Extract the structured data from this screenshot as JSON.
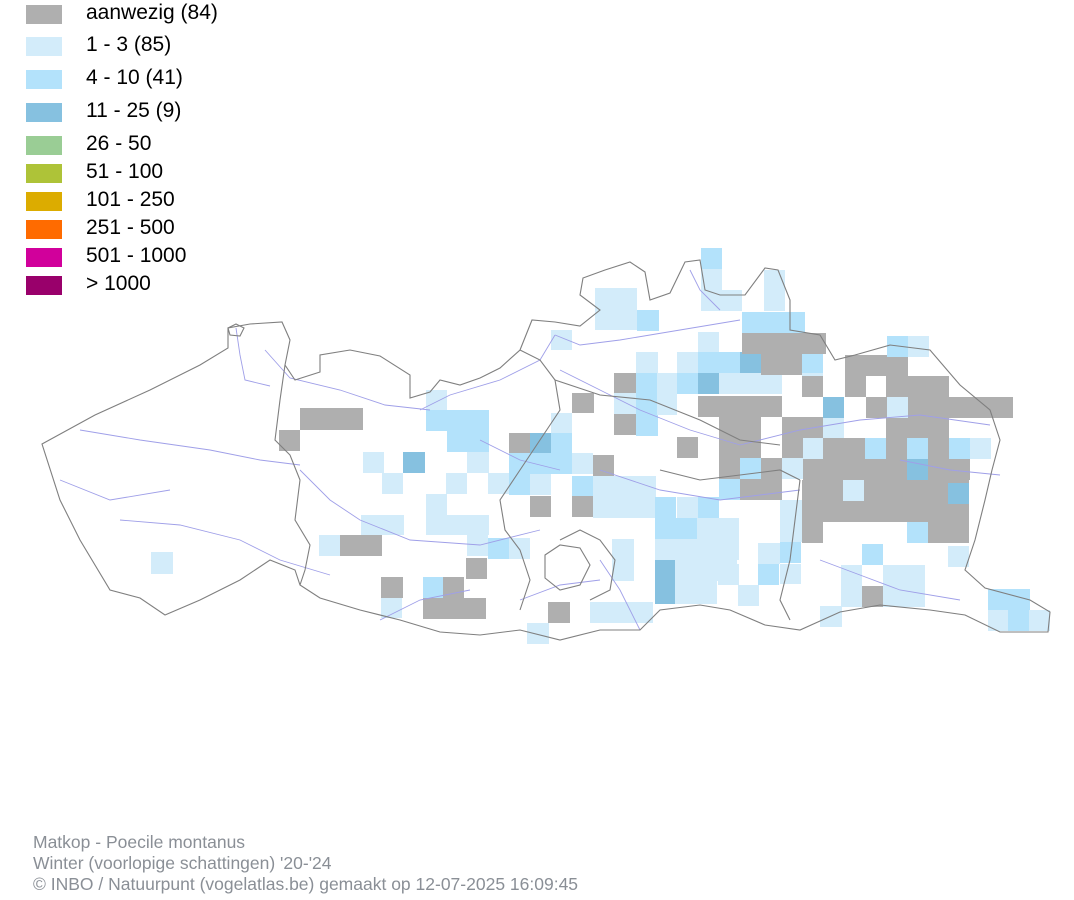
{
  "legend": {
    "items": [
      {
        "label": "aanwezig (84)",
        "color": "#afafaf"
      },
      {
        "label": "1 - 3 (85)",
        "color": "#d3ecfa"
      },
      {
        "label": "4 - 10 (41)",
        "color": "#b3e2fb"
      },
      {
        "label": "11 - 25 (9)",
        "color": "#86c1e0"
      },
      {
        "label": "26 - 50",
        "color": "#9acd95"
      },
      {
        "label": "51 - 100",
        "color": "#aec338"
      },
      {
        "label": "101 - 250",
        "color": "#dcac00"
      },
      {
        "label": "251 - 500",
        "color": "#ff6b00"
      },
      {
        "label": "501 - 1000",
        "color": "#d1009b"
      },
      {
        "label": "> 1000",
        "color": "#99006b"
      }
    ]
  },
  "credits": {
    "species": "Matkop - Poecile montanus",
    "season": "Winter (voorlopige schattingen) '20-'24",
    "copyright": "© INBO / Natuurpunt (vogelatlas.be) gemaakt op 12-07-2025 16:09:45"
  },
  "map": {
    "border_color": "#7f7f7f",
    "river_color": "#9f9fe8",
    "background": "#ffffff"
  }
}
